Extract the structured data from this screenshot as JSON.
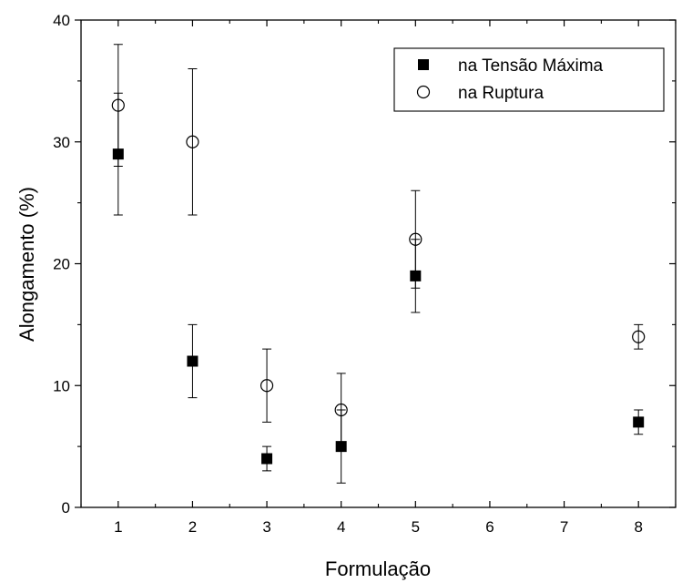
{
  "chart_data": {
    "type": "scatter",
    "xlabel": "Formulação",
    "ylabel": "Alongamento (%)",
    "xlim": [
      0.5,
      8.5
    ],
    "ylim": [
      0,
      40
    ],
    "x_ticks": [
      1,
      2,
      3,
      4,
      5,
      6,
      7,
      8
    ],
    "y_ticks": [
      0,
      10,
      20,
      30,
      40
    ],
    "legend_position": "top-right",
    "grid": false,
    "series": [
      {
        "name": "na Tensão Máxima",
        "marker": "filled-square",
        "color": "#000000",
        "points": [
          {
            "x": 1,
            "y": 29,
            "err_low": 24,
            "err_high": 34
          },
          {
            "x": 2,
            "y": 12,
            "err_low": 9,
            "err_high": 15
          },
          {
            "x": 3,
            "y": 4,
            "err_low": 3,
            "err_high": 5
          },
          {
            "x": 4,
            "y": 5,
            "err_low": 2,
            "err_high": 8
          },
          {
            "x": 5,
            "y": 19,
            "err_low": 16,
            "err_high": 22
          },
          {
            "x": 8,
            "y": 7,
            "err_low": 6,
            "err_high": 8
          }
        ]
      },
      {
        "name": "na Ruptura",
        "marker": "open-circle",
        "color": "#000000",
        "points": [
          {
            "x": 1,
            "y": 33,
            "err_low": 28,
            "err_high": 38
          },
          {
            "x": 2,
            "y": 30,
            "err_low": 24,
            "err_high": 36
          },
          {
            "x": 3,
            "y": 10,
            "err_low": 7,
            "err_high": 13
          },
          {
            "x": 4,
            "y": 8,
            "err_low": 5,
            "err_high": 11
          },
          {
            "x": 5,
            "y": 22,
            "err_low": 18,
            "err_high": 26
          },
          {
            "x": 8,
            "y": 14,
            "err_low": 13,
            "err_high": 15
          }
        ]
      }
    ]
  }
}
